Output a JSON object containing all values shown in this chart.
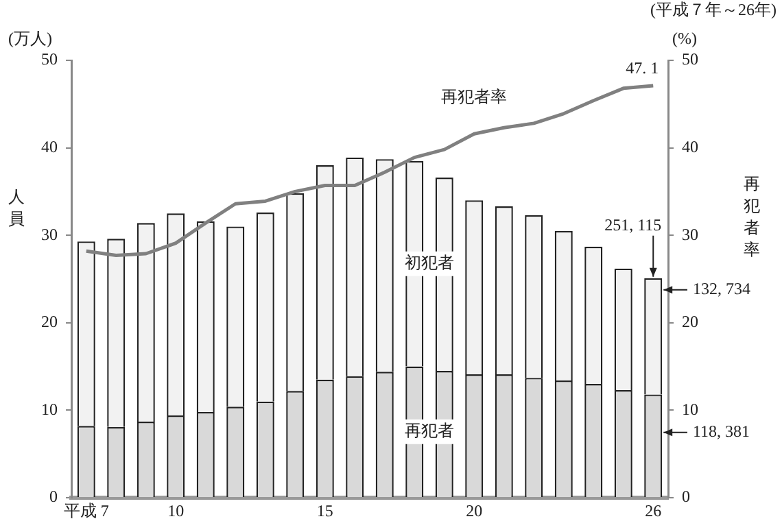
{
  "chart_data": {
    "type": "bar",
    "stacked": true,
    "subtitle": "(平成７年～26年)",
    "ylabel": "人員",
    "y2label": "再犯者率",
    "annotations": [
      "(万人)",
      "(%)",
      {
        "text": "251, 115",
        "x": "26",
        "y": 25.1
      },
      "132, 734",
      "118, 381"
    ],
    "categories": [
      "平成 7",
      null,
      null,
      "10",
      null,
      null,
      null,
      null,
      "15",
      null,
      null,
      null,
      null,
      "20",
      null,
      null,
      null,
      null,
      null,
      "26"
    ],
    "series": [
      {
        "name": "再犯者",
        "color": "#d9d9d9",
        "values": [
          8.2,
          8.1,
          8.7,
          9.4,
          9.8,
          10.4,
          11.0,
          12.2,
          13.5,
          13.9,
          14.4,
          15.0,
          14.5,
          14.1,
          14.1,
          13.7,
          13.4,
          13.0,
          12.3,
          11.8
        ]
      },
      {
        "name": "初犯者",
        "color": "#f2f2f2",
        "values": [
          21.1,
          21.5,
          22.7,
          23.1,
          21.8,
          20.6,
          21.6,
          22.6,
          24.5,
          25.0,
          24.3,
          23.5,
          22.1,
          19.9,
          19.2,
          18.6,
          17.1,
          15.7,
          13.9,
          13.3
        ]
      },
      {
        "name": "再犯者率",
        "type": "line",
        "axis": "y2",
        "color": "#808080",
        "values": [
          28.2,
          27.7,
          27.9,
          29.1,
          31.4,
          33.6,
          33.9,
          35.0,
          35.7,
          35.7,
          37.2,
          38.9,
          39.8,
          41.6,
          42.3,
          42.8,
          43.9,
          45.4,
          46.8,
          47.1
        ],
        "value_labels": [
          null,
          null,
          null,
          null,
          null,
          null,
          null,
          null,
          null,
          null,
          null,
          null,
          null,
          null,
          null,
          null,
          null,
          null,
          null,
          "47. 1"
        ]
      }
    ],
    "ylim": [
      0,
      50
    ],
    "yticks": [
      0,
      10,
      20,
      30,
      40,
      50
    ],
    "y2lim": [
      0,
      50
    ],
    "y2ticks": [
      0,
      10,
      20,
      30,
      40,
      50
    ],
    "grid": false,
    "legend": false,
    "marker": "none",
    "line_style": "solid"
  }
}
